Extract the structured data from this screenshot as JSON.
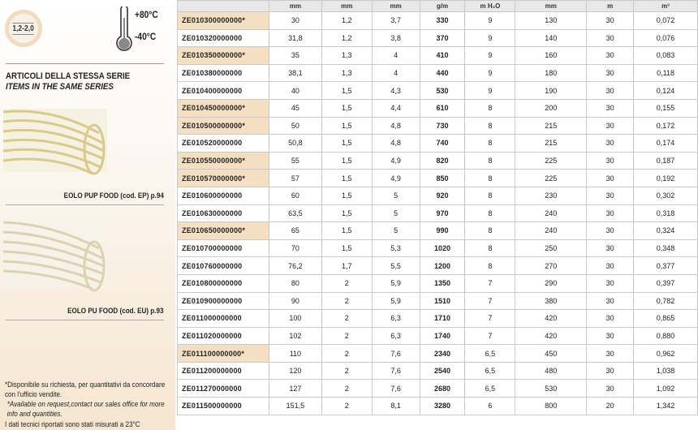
{
  "left": {
    "thickness_badge": "1,2-2,0",
    "temp_max": "+80°C",
    "temp_min": "-40°C",
    "series_title_it": "ARTICOLI DELLA STESSA SERIE",
    "series_title_en": "ITEMS IN THE SAME SERIES",
    "related": [
      {
        "label": "EOLO PUP FOOD (cod. EP) p.94"
      },
      {
        "label": "EOLO PU FOOD (cod. EU) p.93"
      }
    ],
    "note_it": "*Disponibile su richiesta, per quantitativi da concordare con l'ufficio vendite.",
    "note_en": "*Available on request,contact our sales office for more info and quantities.",
    "note_temp": "I dati tecnici riportati sono stati misurati a 23°C"
  },
  "table": {
    "units": [
      "",
      "mm",
      "mm",
      "mm",
      "g/m",
      "m H₂O",
      "mm",
      "m",
      "m³"
    ],
    "rows": [
      {
        "code": "ZE010300000000*",
        "hl": true,
        "v": [
          "30",
          "1,2",
          "3,7",
          "330",
          "9",
          "130",
          "30",
          "0,072"
        ]
      },
      {
        "code": "ZE010320000000",
        "hl": false,
        "v": [
          "31,8",
          "1,2",
          "3,8",
          "370",
          "9",
          "140",
          "30",
          "0,076"
        ]
      },
      {
        "code": "ZE010350000000*",
        "hl": true,
        "v": [
          "35",
          "1,3",
          "4",
          "410",
          "9",
          "160",
          "30",
          "0,083"
        ]
      },
      {
        "code": "ZE010380000000",
        "hl": false,
        "v": [
          "38,1",
          "1,3",
          "4",
          "440",
          "9",
          "180",
          "30",
          "0,118"
        ]
      },
      {
        "code": "ZE010400000000",
        "hl": false,
        "v": [
          "40",
          "1,5",
          "4,3",
          "530",
          "9",
          "190",
          "30",
          "0,124"
        ]
      },
      {
        "code": "ZE010450000000*",
        "hl": true,
        "v": [
          "45",
          "1,5",
          "4,4",
          "610",
          "8",
          "200",
          "30",
          "0,155"
        ]
      },
      {
        "code": "ZE010500000000*",
        "hl": true,
        "v": [
          "50",
          "1,5",
          "4,8",
          "730",
          "8",
          "215",
          "30",
          "0,172"
        ]
      },
      {
        "code": "ZE010520000000",
        "hl": false,
        "v": [
          "50,8",
          "1,5",
          "4,8",
          "740",
          "8",
          "215",
          "30",
          "0,174"
        ]
      },
      {
        "code": "ZE010550000000*",
        "hl": true,
        "v": [
          "55",
          "1,5",
          "4,9",
          "820",
          "8",
          "225",
          "30",
          "0,187"
        ]
      },
      {
        "code": "ZE010570000000*",
        "hl": true,
        "v": [
          "57",
          "1,5",
          "4,9",
          "850",
          "8",
          "225",
          "30",
          "0,192"
        ]
      },
      {
        "code": "ZE010600000000",
        "hl": false,
        "v": [
          "60",
          "1,5",
          "5",
          "920",
          "8",
          "230",
          "30",
          "0,302"
        ]
      },
      {
        "code": "ZE010630000000",
        "hl": false,
        "v": [
          "63,5",
          "1,5",
          "5",
          "970",
          "8",
          "240",
          "30",
          "0,318"
        ]
      },
      {
        "code": "ZE010650000000*",
        "hl": true,
        "v": [
          "65",
          "1,5",
          "5",
          "990",
          "8",
          "240",
          "30",
          "0,324"
        ]
      },
      {
        "code": "ZE010700000000",
        "hl": false,
        "v": [
          "70",
          "1,5",
          "5,3",
          "1020",
          "8",
          "250",
          "30",
          "0,348"
        ]
      },
      {
        "code": "ZE010760000000",
        "hl": false,
        "v": [
          "76,2",
          "1,7",
          "5,5",
          "1200",
          "8",
          "270",
          "30",
          "0,377"
        ]
      },
      {
        "code": "ZE010800000000",
        "hl": false,
        "v": [
          "80",
          "2",
          "5,9",
          "1350",
          "7",
          "290",
          "30",
          "0,397"
        ]
      },
      {
        "code": "ZE010900000000",
        "hl": false,
        "v": [
          "90",
          "2",
          "5,9",
          "1510",
          "7",
          "380",
          "30",
          "0,782"
        ]
      },
      {
        "code": "ZE011000000000",
        "hl": false,
        "v": [
          "100",
          "2",
          "6,3",
          "1710",
          "7",
          "420",
          "30",
          "0,865"
        ]
      },
      {
        "code": "ZE011020000000",
        "hl": false,
        "v": [
          "102",
          "2",
          "6,3",
          "1740",
          "7",
          "420",
          "30",
          "0,880"
        ]
      },
      {
        "code": "ZE011100000000*",
        "hl": true,
        "v": [
          "110",
          "2",
          "7,6",
          "2340",
          "6,5",
          "450",
          "30",
          "0,962"
        ]
      },
      {
        "code": "ZE011200000000",
        "hl": false,
        "v": [
          "120",
          "2",
          "7,6",
          "2540",
          "6,5",
          "480",
          "30",
          "1,038"
        ]
      },
      {
        "code": "ZE011270000000",
        "hl": false,
        "v": [
          "127",
          "2",
          "7,6",
          "2680",
          "6,5",
          "530",
          "30",
          "1,092"
        ]
      },
      {
        "code": "ZE011500000000",
        "hl": false,
        "v": [
          "151,5",
          "2",
          "8,1",
          "3280",
          "6",
          "800",
          "20",
          "1,342"
        ]
      }
    ]
  }
}
